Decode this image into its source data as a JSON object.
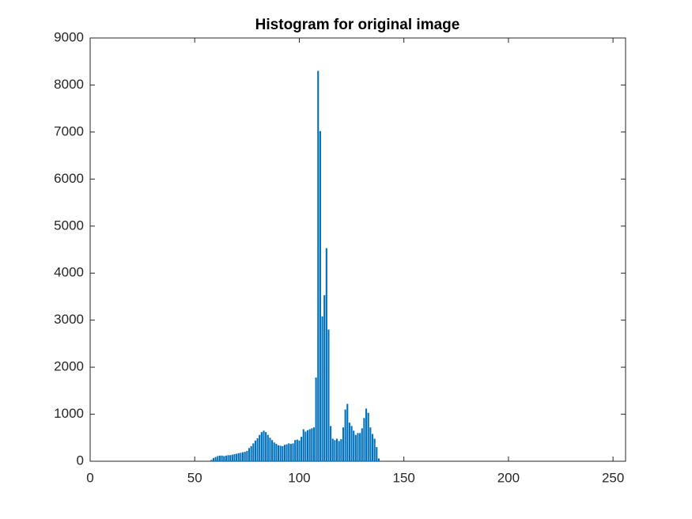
{
  "chart_data": {
    "type": "bar",
    "title": "Histogram for original image",
    "x": [
      58,
      59,
      60,
      61,
      62,
      63,
      64,
      65,
      66,
      67,
      68,
      69,
      70,
      71,
      72,
      73,
      74,
      75,
      76,
      77,
      78,
      79,
      80,
      81,
      82,
      83,
      84,
      85,
      86,
      87,
      88,
      89,
      90,
      91,
      92,
      93,
      94,
      95,
      96,
      97,
      98,
      99,
      100,
      101,
      102,
      103,
      104,
      105,
      106,
      107,
      108,
      109,
      110,
      111,
      112,
      113,
      114,
      115,
      116,
      117,
      118,
      119,
      120,
      121,
      122,
      123,
      124,
      125,
      126,
      127,
      128,
      129,
      130,
      131,
      132,
      133,
      134,
      135,
      136,
      137,
      138
    ],
    "values": [
      30,
      70,
      90,
      110,
      120,
      120,
      110,
      120,
      130,
      130,
      140,
      150,
      160,
      170,
      180,
      190,
      200,
      220,
      280,
      320,
      380,
      440,
      490,
      560,
      620,
      650,
      620,
      560,
      500,
      450,
      400,
      370,
      340,
      330,
      320,
      350,
      360,
      380,
      370,
      380,
      450,
      460,
      440,
      520,
      680,
      630,
      660,
      680,
      700,
      720,
      1780,
      8300,
      7020,
      3080,
      3530,
      4530,
      2800,
      750,
      480,
      450,
      480,
      430,
      470,
      720,
      1100,
      1220,
      820,
      750,
      650,
      560,
      600,
      600,
      700,
      920,
      1120,
      1030,
      720,
      580,
      480,
      300,
      60
    ],
    "color": "#0072bd",
    "xlim": [
      0,
      256
    ],
    "xticks": [
      0,
      50,
      100,
      150,
      200,
      250
    ],
    "ylim": [
      0,
      9000
    ],
    "yticks": [
      0,
      1000,
      2000,
      3000,
      4000,
      5000,
      6000,
      7000,
      8000,
      9000
    ],
    "grid": false
  }
}
